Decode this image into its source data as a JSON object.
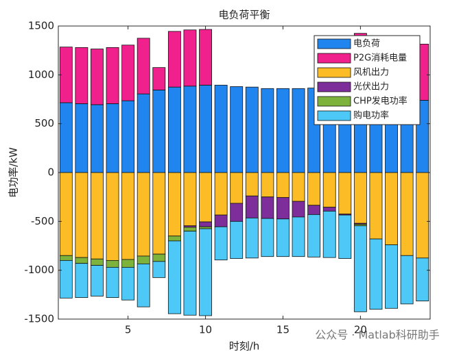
{
  "chart_data": {
    "type": "bar",
    "stacked": true,
    "title": "电负荷平衡",
    "xlabel": "时刻/h",
    "ylabel": "电功率/kW",
    "watermark": "公众号 · Matlab科研助手",
    "categories": [
      1,
      2,
      3,
      4,
      5,
      6,
      7,
      8,
      9,
      10,
      11,
      12,
      13,
      14,
      15,
      16,
      17,
      18,
      19,
      20,
      21,
      22,
      23,
      24
    ],
    "xlim": [
      0.5,
      24.5
    ],
    "xticks": [
      5,
      10,
      15,
      20
    ],
    "ylim": [
      -1500,
      1500
    ],
    "yticks": [
      -1500,
      -1000,
      -500,
      0,
      500,
      1000,
      1500
    ],
    "legend_position": "upper right",
    "series": [
      {
        "name": "电负荷",
        "color": "#2185ef",
        "values": [
          715,
          705,
          695,
          705,
          735,
          805,
          845,
          875,
          885,
          895,
          895,
          880,
          875,
          860,
          860,
          860,
          865,
          870,
          880,
          890,
          880,
          860,
          800,
          740
        ]
      },
      {
        "name": "P2G消耗电量",
        "color": "#f0208c",
        "values": [
          570,
          575,
          570,
          575,
          570,
          570,
          230,
          570,
          575,
          570,
          0,
          0,
          0,
          0,
          0,
          0,
          0,
          0,
          0,
          535,
          520,
          530,
          545,
          575
        ]
      },
      {
        "name": "风机出力",
        "color": "#fbbc25",
        "values": [
          -850,
          -870,
          -885,
          -900,
          -890,
          -855,
          -835,
          -650,
          -545,
          -505,
          -435,
          -315,
          -240,
          -250,
          -255,
          -295,
          -335,
          -355,
          -425,
          -520,
          -680,
          -740,
          -850,
          -875
        ]
      },
      {
        "name": "光伏出力",
        "color": "#7d2e9b",
        "values": [
          0,
          0,
          0,
          0,
          0,
          0,
          0,
          0,
          -15,
          -50,
          -120,
          -185,
          -225,
          -220,
          -220,
          -160,
          -95,
          -40,
          -10,
          -10,
          0,
          0,
          0,
          0
        ]
      },
      {
        "name": "CHP发电功率",
        "color": "#7db33c",
        "values": [
          -50,
          -60,
          -65,
          -70,
          -80,
          -80,
          -75,
          -50,
          -40,
          -20,
          0,
          0,
          0,
          0,
          0,
          0,
          0,
          0,
          0,
          -15,
          0,
          0,
          0,
          0
        ]
      },
      {
        "name": "购电功率",
        "color": "#4ec8f7",
        "values": [
          -385,
          -350,
          -315,
          -310,
          -335,
          -440,
          -165,
          -745,
          -860,
          -890,
          -340,
          -380,
          -410,
          -390,
          -385,
          -405,
          -435,
          -475,
          -445,
          -880,
          -720,
          -650,
          -495,
          -440
        ]
      }
    ]
  }
}
